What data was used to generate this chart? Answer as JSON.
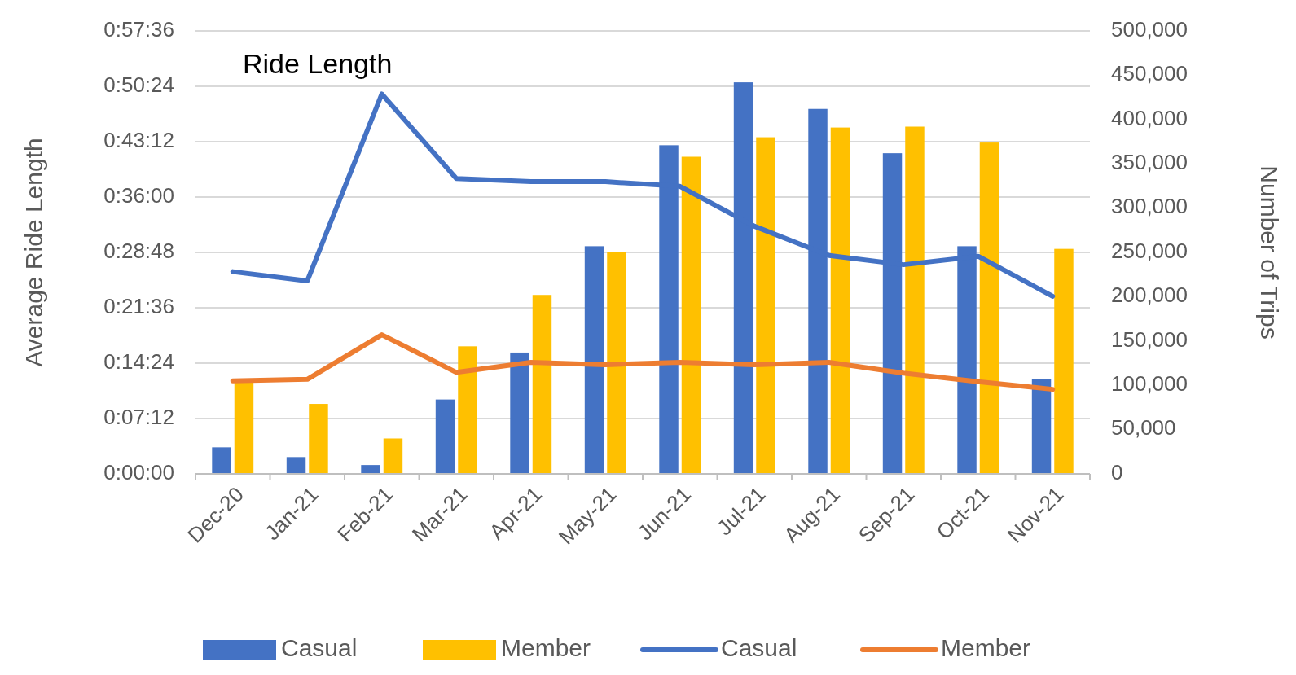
{
  "chart_data": {
    "type": "bar",
    "title": "Ride Length",
    "ylabel": "Average Ride Length",
    "y2label": "Number of Trips",
    "categories": [
      "Dec-20",
      "Jan-21",
      "Feb-21",
      "Mar-21",
      "Apr-21",
      "May-21",
      "Jun-21",
      "Jul-21",
      "Aug-21",
      "Sep-21",
      "Oct-21",
      "Nov-21"
    ],
    "series": [
      {
        "name": "Casual",
        "axis": "y2",
        "color": "#4472c4",
        "values": [
          30000,
          19000,
          10000,
          84000,
          137000,
          257000,
          371000,
          442000,
          412000,
          362000,
          257000,
          107000
        ]
      },
      {
        "name": "Member",
        "axis": "y2",
        "color": "#ffc000",
        "values": [
          105000,
          79000,
          40000,
          144000,
          202000,
          250000,
          358000,
          380000,
          391000,
          392000,
          374000,
          254000
        ]
      },
      {
        "name": "Casual",
        "type": "line",
        "axis": "y",
        "color": "#4472c4",
        "values": [
          26.3,
          25.1,
          49.4,
          38.4,
          38.0,
          38.0,
          37.4,
          32.2,
          28.4,
          27.2,
          28.3,
          23.1
        ]
      },
      {
        "name": "Member",
        "type": "line",
        "axis": "y",
        "color": "#ed7d31",
        "values": [
          12.1,
          12.3,
          18.1,
          13.2,
          14.5,
          14.2,
          14.5,
          14.2,
          14.5,
          13.1,
          12.0,
          11.0
        ]
      }
    ],
    "ylim": [
      0,
      57.6
    ],
    "yticks": [
      {
        "value": 0,
        "label": "0:00:00"
      },
      {
        "value": 7.2,
        "label": "0:07:12"
      },
      {
        "value": 14.4,
        "label": "0:14:24"
      },
      {
        "value": 21.6,
        "label": "0:21:36"
      },
      {
        "value": 28.8,
        "label": "0:28:48"
      },
      {
        "value": 36,
        "label": "0:36:00"
      },
      {
        "value": 43.2,
        "label": "0:43:12"
      },
      {
        "value": 50.4,
        "label": "0:50:24"
      },
      {
        "value": 57.6,
        "label": "0:57:36"
      }
    ],
    "y2lim": [
      0,
      500000
    ],
    "y2ticks": [
      {
        "value": 0,
        "label": "0"
      },
      {
        "value": 50000,
        "label": "50,000"
      },
      {
        "value": 100000,
        "label": "100,000"
      },
      {
        "value": 150000,
        "label": "150,000"
      },
      {
        "value": 200000,
        "label": "200,000"
      },
      {
        "value": 250000,
        "label": "250,000"
      },
      {
        "value": 300000,
        "label": "300,000"
      },
      {
        "value": 350000,
        "label": "350,000"
      },
      {
        "value": 400000,
        "label": "400,000"
      },
      {
        "value": 450000,
        "label": "450,000"
      },
      {
        "value": 500000,
        "label": "500,000"
      }
    ],
    "grid": "y",
    "legend": "bottom",
    "marker": "none",
    "line_style": "solid"
  }
}
